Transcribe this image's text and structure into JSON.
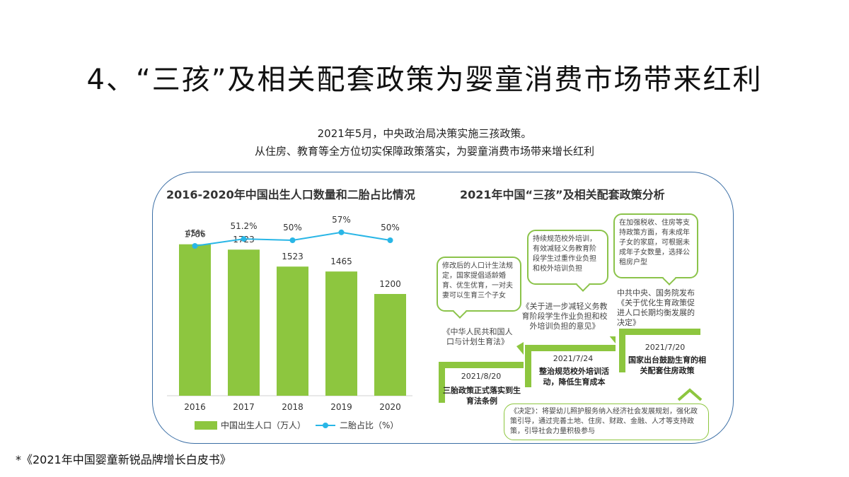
{
  "title": "4、“三孩”及相关配套政策为婴童消费市场带来红利",
  "subtitle_line1": "2021年5月，中央政治局决策实施三孩政策。",
  "subtitle_line2": "从住房、教育等全方位切实保障政策落实，为婴童消费市场带来增长红利",
  "chart_data": {
    "type": "bar",
    "title": "2016-2020年中国出生人口数量和二胎占比情况",
    "categories": [
      "2016",
      "2017",
      "2018",
      "2019",
      "2020"
    ],
    "series": [
      {
        "name": "中国出生人口（万人）",
        "type": "bar",
        "values": [
          1786,
          1723,
          1523,
          1465,
          1200
        ],
        "labels": [
          "1786",
          "1723",
          "1523",
          "1465",
          "1200"
        ],
        "color": "#8dc63f"
      },
      {
        "name": "二胎占比（%）",
        "type": "line",
        "values": [
          45,
          51.2,
          50,
          57,
          50
        ],
        "labels": [
          "45%",
          "51.2%",
          "50%",
          "57%",
          "50%"
        ],
        "color": "#29b6e6"
      }
    ],
    "ylim_bar": [
      0,
      2000
    ],
    "ylim_line": [
      0,
      150
    ],
    "legend": "bottom"
  },
  "policy": {
    "title": "2021年中国“三孩”及相关配套政策分析",
    "items": [
      {
        "bubble": "修改后的人口计生法规定，国家提倡适龄婚育、优生优育，一对夫妻可以生育三个子女",
        "document": "《中华人民共和国人口与计划生育法》",
        "date": "2021/8/20",
        "event": "三胎政策正式落实到生育法条例"
      },
      {
        "bubble": "持续规范校外培训，有效减轻义务教育阶段学生过重作业负担和校外培训负担",
        "document": "《关于进一步减轻义务教育阶段学生作业负担和校外培训负担的意见》",
        "date": "2021/7/24",
        "event": "整治规范校外培训活动，降低生育成本"
      },
      {
        "bubble": "在加强税收、住房等支持政策方面，有未成年子女的家庭，可根据未成年子女数量，选择公租房户型",
        "document": "中共中央、国务院发布《关于优化生育政策促进人口长期均衡发展的决定》",
        "date": "2021/7/20",
        "event": "国家出台鼓励生育的相关配套住房政策"
      }
    ],
    "decision": "《决定》：将婴幼儿照护服务纳入经济社会发展规划，强化政策引导，通过完善土地、住房、财政、金融、人才等支持政策，引导社会力量积极参与"
  },
  "footnote": "*《2021年中国婴童新锐品牌增长白皮书》",
  "colors": {
    "bar": "#8dc63f",
    "line": "#29b6e6",
    "border": "#3a6ea5"
  }
}
